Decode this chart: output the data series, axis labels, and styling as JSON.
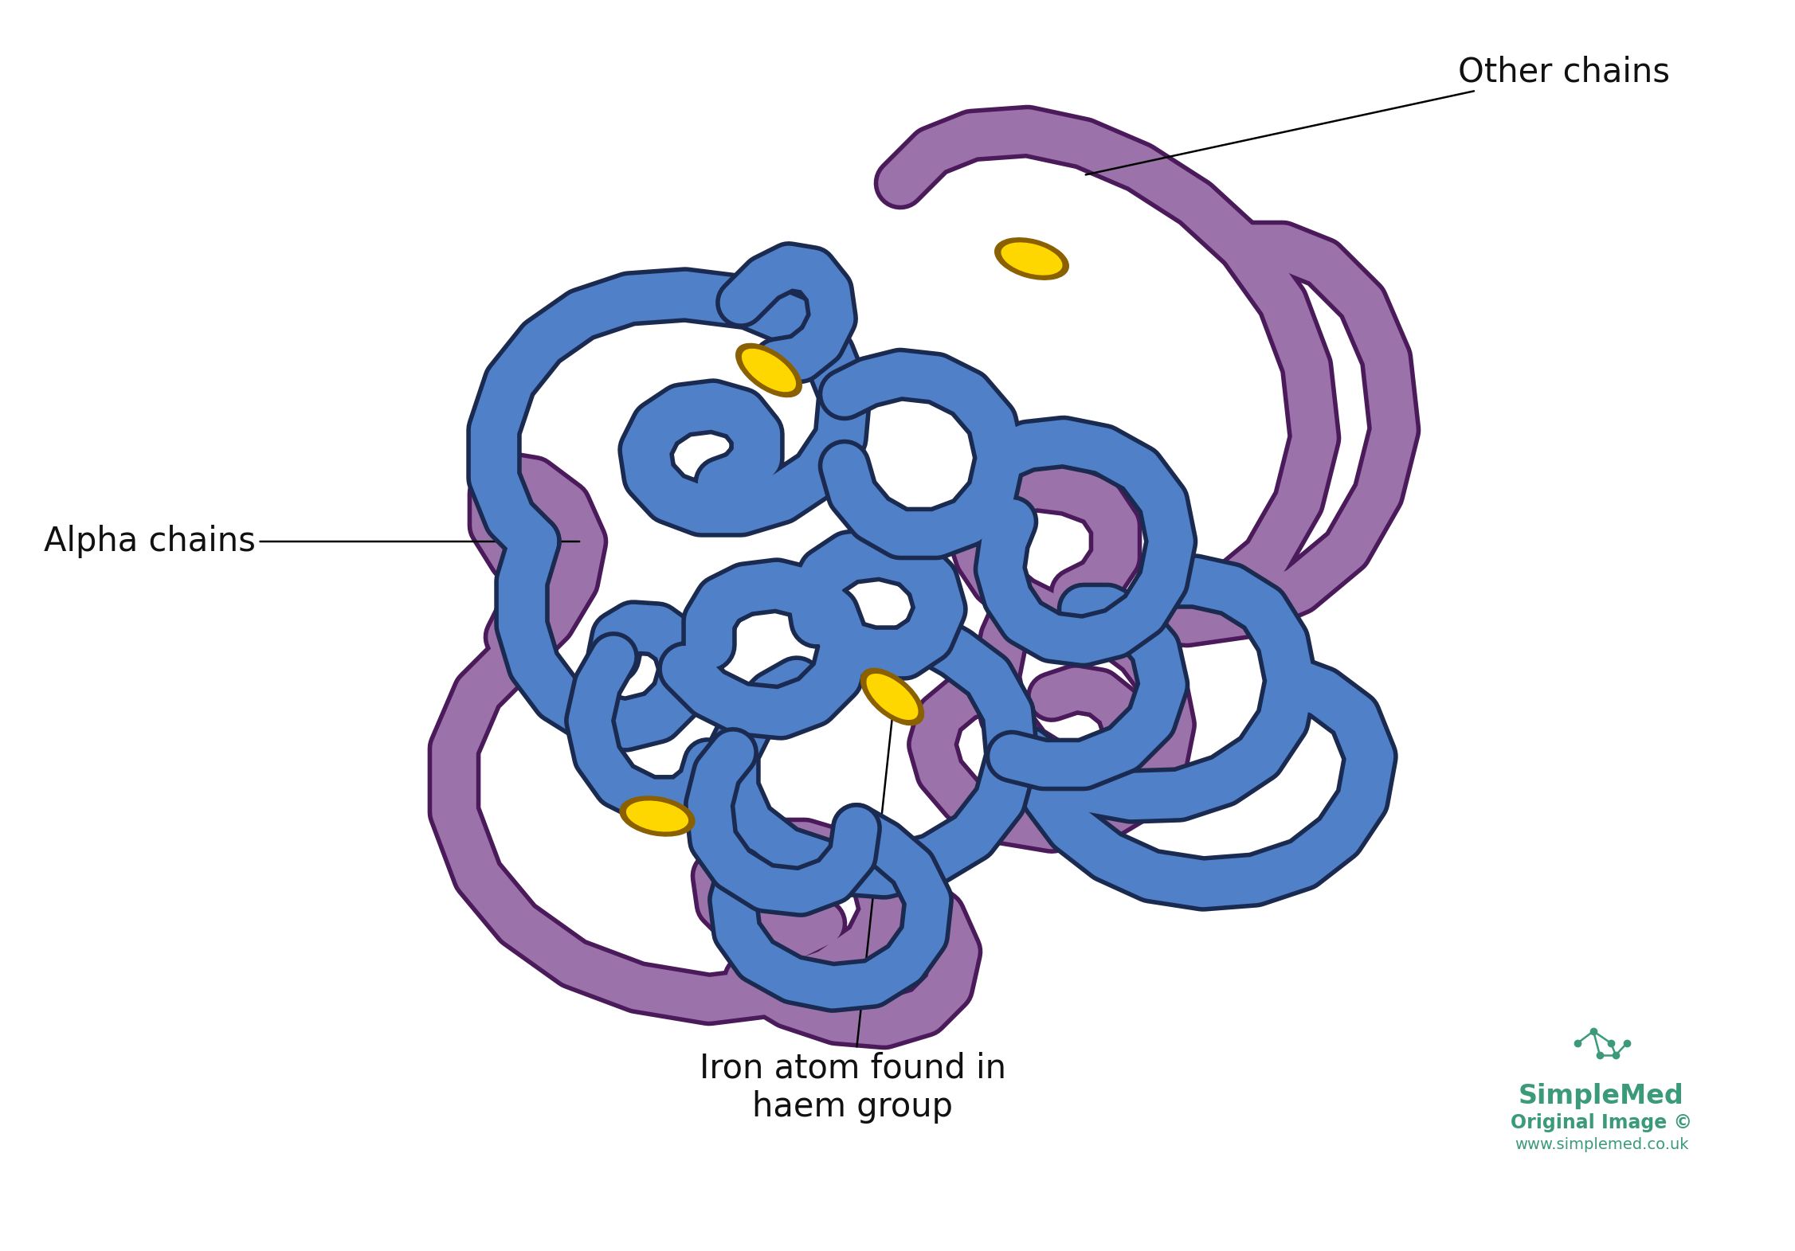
{
  "background_color": "#ffffff",
  "blue_color": "#5080C8",
  "blue_outline": "#1a2a50",
  "purple_color": "#9B72AA",
  "purple_outline": "#4a1a5a",
  "iron_color": "#FFD700",
  "iron_outline": "#8B6000",
  "label_color": "#111111",
  "simplemed_color": "#3a9a7a",
  "label_fontsize": 30,
  "fig_width": 22.53,
  "fig_height": 15.71,
  "alpha_chains_label": "Alpha chains",
  "other_chains_label": "Other chains",
  "iron_label_line1": "Iron atom found in",
  "iron_label_line2": "haem group",
  "simplemed_text": "SimpleMed",
  "original_image_text": "Original Image ©",
  "website_text": "www.simplemed.co.uk"
}
